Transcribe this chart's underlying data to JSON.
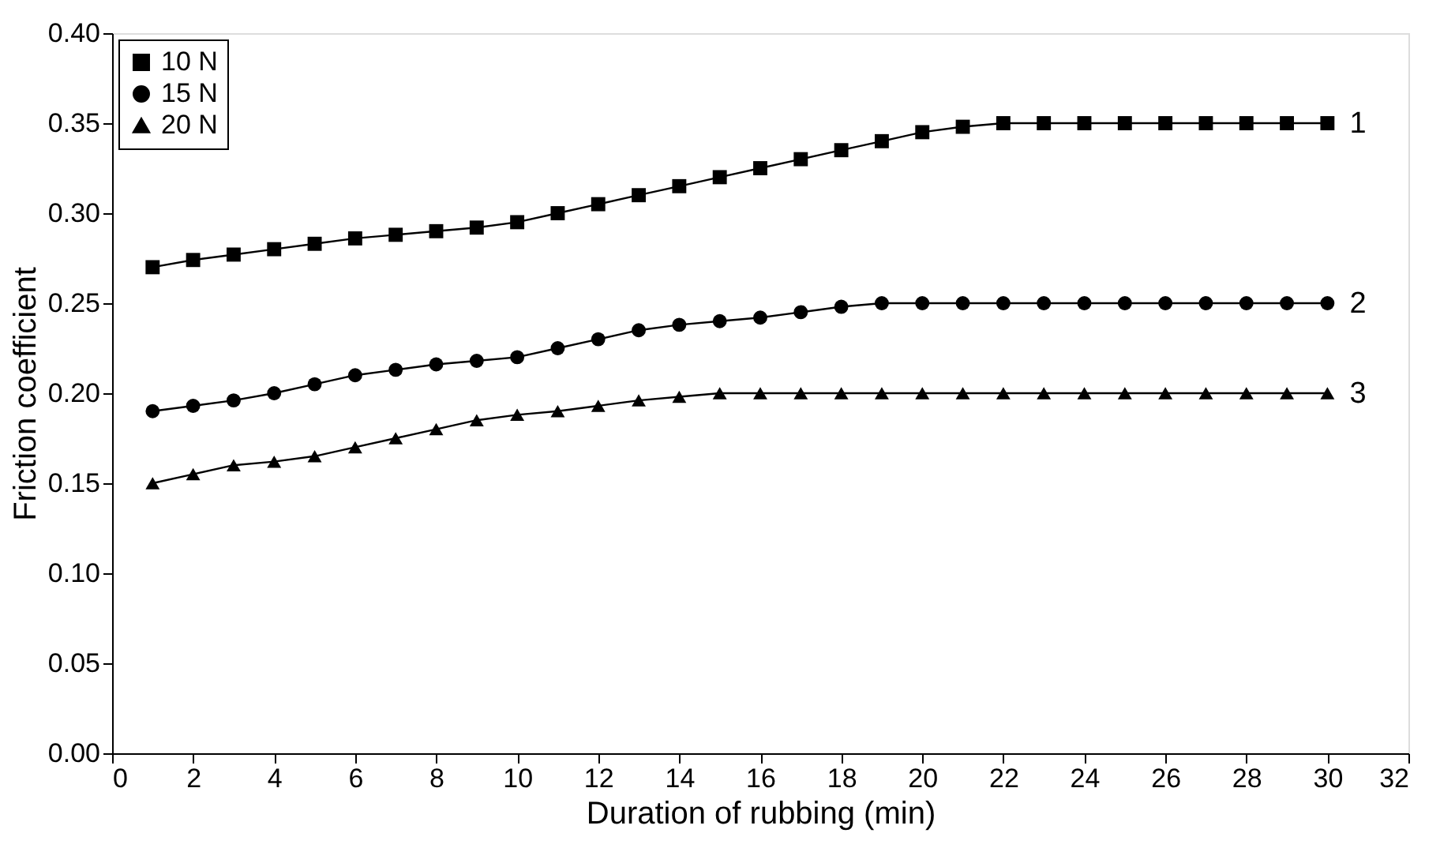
{
  "chart_data": {
    "type": "line",
    "xlabel": "Duration of rubbing (min)",
    "ylabel": "Friction coefficient",
    "x": [
      1,
      2,
      3,
      4,
      5,
      6,
      7,
      8,
      9,
      10,
      11,
      12,
      13,
      14,
      15,
      16,
      17,
      18,
      19,
      20,
      21,
      22,
      23,
      24,
      25,
      26,
      27,
      28,
      29,
      30
    ],
    "series": [
      {
        "name": "10 N",
        "color": "#000000",
        "marker": "square",
        "values": [
          0.27,
          0.274,
          0.277,
          0.28,
          0.283,
          0.286,
          0.288,
          0.29,
          0.292,
          0.295,
          0.3,
          0.305,
          0.31,
          0.315,
          0.32,
          0.325,
          0.33,
          0.335,
          0.34,
          0.345,
          0.348,
          0.35,
          0.35,
          0.35,
          0.35,
          0.35,
          0.35,
          0.35,
          0.35,
          0.35
        ]
      },
      {
        "name": "15 N",
        "color": "#000000",
        "marker": "circle",
        "values": [
          0.19,
          0.193,
          0.196,
          0.2,
          0.205,
          0.21,
          0.213,
          0.216,
          0.218,
          0.22,
          0.225,
          0.23,
          0.235,
          0.238,
          0.24,
          0.242,
          0.245,
          0.248,
          0.25,
          0.25,
          0.25,
          0.25,
          0.25,
          0.25,
          0.25,
          0.25,
          0.25,
          0.25,
          0.25,
          0.25
        ]
      },
      {
        "name": "20 N",
        "color": "#000000",
        "marker": "triangle",
        "values": [
          0.15,
          0.155,
          0.16,
          0.162,
          0.165,
          0.17,
          0.175,
          0.18,
          0.185,
          0.188,
          0.19,
          0.193,
          0.196,
          0.198,
          0.2,
          0.2,
          0.2,
          0.2,
          0.2,
          0.2,
          0.2,
          0.2,
          0.2,
          0.2,
          0.2,
          0.2,
          0.2,
          0.2,
          0.2,
          0.2
        ]
      }
    ],
    "annotations": [
      "1",
      "2",
      "3"
    ],
    "xlim": [
      0,
      32
    ],
    "xticks": [
      0,
      2,
      4,
      6,
      8,
      10,
      12,
      14,
      16,
      18,
      20,
      22,
      24,
      26,
      28,
      30,
      32
    ],
    "ylim": [
      0,
      0.4
    ],
    "yticks": [
      {
        "value": 0,
        "label": "0.00"
      },
      {
        "value": 0.05,
        "label": "0.05"
      },
      {
        "value": 0.1,
        "label": "0.10"
      },
      {
        "value": 0.15,
        "label": "0.15"
      },
      {
        "value": 0.2,
        "label": "0.20"
      },
      {
        "value": 0.25,
        "label": "0.25"
      },
      {
        "value": 0.3,
        "label": "0.30"
      },
      {
        "value": 0.35,
        "label": "0.35"
      },
      {
        "value": 0.4,
        "label": "0.40"
      }
    ],
    "grid": false,
    "legend": "top left",
    "line_style": "solid"
  }
}
